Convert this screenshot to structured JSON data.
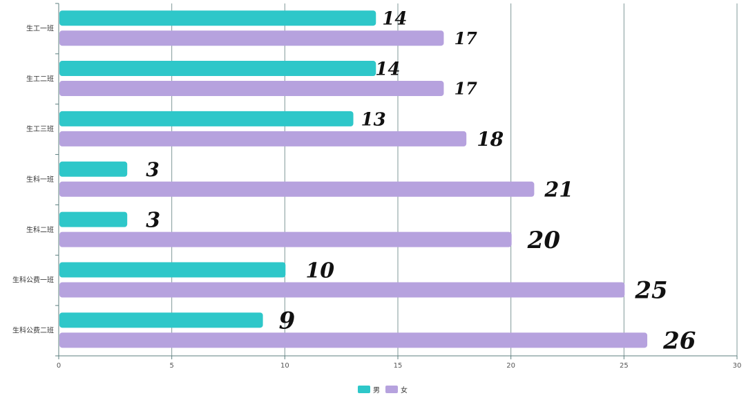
{
  "chart_data": {
    "type": "bar",
    "orientation": "horizontal",
    "categories": [
      "生工一班",
      "生工二班",
      "生工三班",
      "生科一班",
      "生科二班",
      "生科公费一班",
      "生科公费二班"
    ],
    "series": [
      {
        "name": "男",
        "color": "#2ec7c9",
        "values": [
          14,
          14,
          13,
          3,
          3,
          10,
          9
        ]
      },
      {
        "name": "女",
        "color": "#b6a2de",
        "values": [
          17,
          17,
          18,
          21,
          20,
          25,
          26
        ]
      }
    ],
    "x_ticks": [
      0,
      5,
      10,
      15,
      20,
      25,
      30
    ],
    "xlim": [
      0,
      30
    ],
    "grid": true,
    "legend": "bottom-center",
    "title": "",
    "xlabel": "",
    "ylabel": ""
  }
}
